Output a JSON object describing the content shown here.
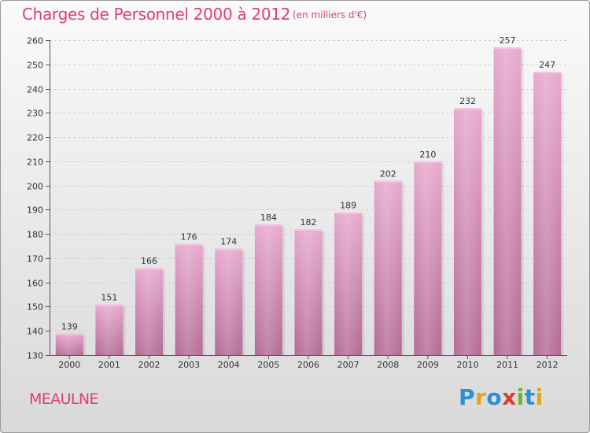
{
  "title": "Charges de Personnel 2000 à 2012",
  "subtitle": "(en milliers d'€)",
  "commune": "MEAULNE",
  "logo": {
    "text": "Proxiti",
    "letters": [
      {
        "char": "P",
        "color": "#2b8fd6"
      },
      {
        "char": "r",
        "color": "#e8a21a"
      },
      {
        "char": "o",
        "color": "#2b8fd6"
      },
      {
        "char": "x",
        "color": "#e03a2e"
      },
      {
        "char": "i",
        "color": "#6ab42e"
      },
      {
        "char": "t",
        "color": "#2b8fd6"
      },
      {
        "char": "i",
        "color": "#e8a21a"
      }
    ]
  },
  "colors": {
    "accent": "#df3b7f",
    "bar_top": "#e7a8cd",
    "bar_bottom": "#b36b95",
    "axis": "#555555",
    "grid": "#cfcfcf"
  },
  "chart_data": {
    "type": "bar",
    "title": "Charges de Personnel 2000 à 2012",
    "subtitle": "(en milliers d'€)",
    "xlabel": "",
    "ylabel": "",
    "categories": [
      "2000",
      "2001",
      "2002",
      "2003",
      "2004",
      "2005",
      "2006",
      "2007",
      "2008",
      "2009",
      "2010",
      "2011",
      "2012"
    ],
    "values": [
      139,
      151,
      166,
      176,
      174,
      184,
      182,
      189,
      202,
      210,
      232,
      257,
      247
    ],
    "ylim": [
      130,
      260
    ],
    "yticks": [
      130,
      140,
      150,
      160,
      170,
      180,
      190,
      200,
      210,
      220,
      230,
      240,
      250,
      260
    ],
    "grid": true,
    "data_labels": true
  }
}
